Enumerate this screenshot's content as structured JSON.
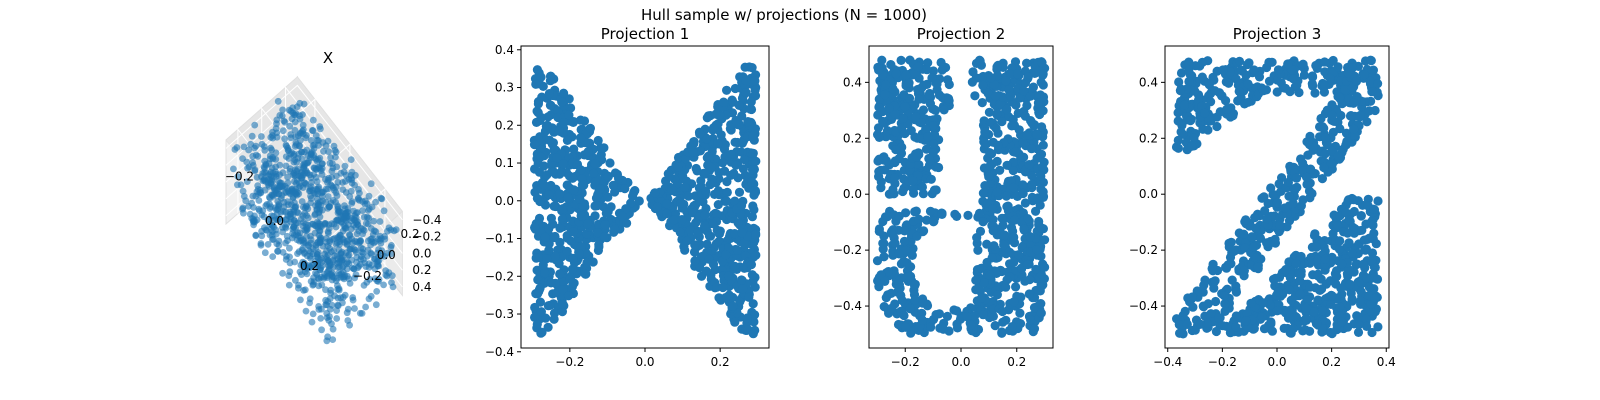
{
  "figure": {
    "suptitle": "Hull sample w/ projections (N = 1000)",
    "point_color": "#1f77b4",
    "n_points": 1000
  },
  "chart_data": [
    {
      "type": "scatter",
      "projection": "3d",
      "title": "X",
      "n_points": 1000,
      "x_ticks": [
        "−0.2",
        "0.0",
        "0.2"
      ],
      "y_ticks": [
        "−0.2",
        "0.0",
        "0.2"
      ],
      "z_ticks": [
        "0.4",
        "0.2",
        "0.0",
        "−0.2",
        "−0.4"
      ],
      "xlim": [
        -0.3,
        0.3
      ],
      "ylim": [
        -0.3,
        0.3
      ],
      "zlim": [
        -0.5,
        0.5
      ],
      "point_alpha": 0.6,
      "grid": true
    },
    {
      "type": "scatter",
      "title": "Projection 1",
      "shape": "X",
      "n_points": 1000,
      "xlim": [
        -0.33,
        0.33
      ],
      "ylim": [
        -0.39,
        0.41
      ],
      "x_ticks": [
        "−0.2",
        "0.0",
        "0.2"
      ],
      "y_ticks": [
        "0.4",
        "0.3",
        "0.2",
        "0.1",
        "0.0",
        "−0.1",
        "−0.2",
        "−0.3",
        "−0.4"
      ],
      "grid": false
    },
    {
      "type": "scatter",
      "title": "Projection 2",
      "shape": "Y",
      "n_points": 1000,
      "xlim": [
        -0.33,
        0.33
      ],
      "ylim": [
        -0.55,
        0.53
      ],
      "x_ticks": [
        "−0.2",
        "0.0",
        "0.2"
      ],
      "y_ticks": [
        "0.4",
        "0.2",
        "0.0",
        "−0.2",
        "−0.4"
      ],
      "grid": false
    },
    {
      "type": "scatter",
      "title": "Projection 3",
      "shape": "Z",
      "n_points": 1000,
      "xlim": [
        -0.41,
        0.41
      ],
      "ylim": [
        -0.55,
        0.53
      ],
      "x_ticks": [
        "−0.4",
        "−0.2",
        "0.0",
        "0.2",
        "0.4"
      ],
      "y_ticks": [
        "0.4",
        "0.2",
        "0.0",
        "−0.2",
        "−0.4"
      ],
      "grid": false
    }
  ]
}
